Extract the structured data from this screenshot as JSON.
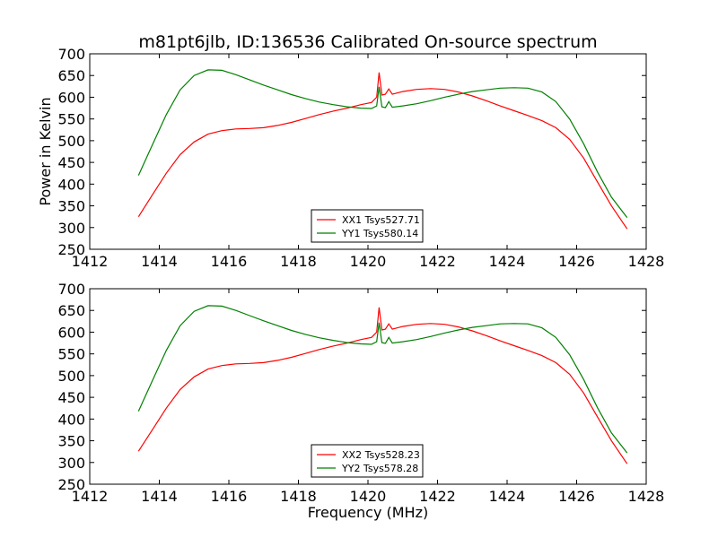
{
  "figure": {
    "title": "m81pt6jlb, ID:136536 Calibrated On-source spectrum",
    "xlabel": "Frequency (MHz)",
    "ylabel": "Power in Kelvin"
  },
  "chart_data": [
    {
      "type": "line",
      "title": "m81pt6jlb, ID:136536 Calibrated On-source spectrum",
      "xlabel": "",
      "ylabel": "Power in Kelvin",
      "xlim": [
        1412,
        1428
      ],
      "ylim": [
        250,
        700
      ],
      "xticks": [
        1412,
        1414,
        1416,
        1418,
        1420,
        1422,
        1424,
        1426,
        1428
      ],
      "yticks": [
        250,
        300,
        350,
        400,
        450,
        500,
        550,
        600,
        650,
        700
      ],
      "grid": false,
      "legend_position": "lower-center",
      "series": [
        {
          "name": "XX1 Tsys527.71",
          "color": "#ff0000",
          "points": [
            [
              1413.4,
              325
            ],
            [
              1413.8,
              375
            ],
            [
              1414.2,
              425
            ],
            [
              1414.6,
              468
            ],
            [
              1415.0,
              497
            ],
            [
              1415.4,
              515
            ],
            [
              1415.8,
              523
            ],
            [
              1416.2,
              527
            ],
            [
              1416.6,
              528
            ],
            [
              1417.0,
              530
            ],
            [
              1417.4,
              535
            ],
            [
              1417.8,
              542
            ],
            [
              1418.2,
              551
            ],
            [
              1418.6,
              560
            ],
            [
              1419.0,
              568
            ],
            [
              1419.4,
              575
            ],
            [
              1419.8,
              583
            ],
            [
              1420.1,
              588
            ],
            [
              1420.25,
              600
            ],
            [
              1420.32,
              657
            ],
            [
              1420.4,
              605
            ],
            [
              1420.5,
              607
            ],
            [
              1420.6,
              619
            ],
            [
              1420.7,
              607
            ],
            [
              1421.0,
              613
            ],
            [
              1421.4,
              618
            ],
            [
              1421.8,
              620
            ],
            [
              1422.2,
              618
            ],
            [
              1422.6,
              612
            ],
            [
              1423.0,
              603
            ],
            [
              1423.4,
              592
            ],
            [
              1423.8,
              580
            ],
            [
              1424.2,
              569
            ],
            [
              1424.6,
              558
            ],
            [
              1425.0,
              546
            ],
            [
              1425.4,
              530
            ],
            [
              1425.8,
              503
            ],
            [
              1426.2,
              460
            ],
            [
              1426.6,
              405
            ],
            [
              1427.0,
              350
            ],
            [
              1427.45,
              297
            ]
          ]
        },
        {
          "name": "YY1 Tsys580.14",
          "color": "#008000",
          "points": [
            [
              1413.4,
              420
            ],
            [
              1413.8,
              490
            ],
            [
              1414.2,
              560
            ],
            [
              1414.6,
              617
            ],
            [
              1415.0,
              650
            ],
            [
              1415.4,
              663
            ],
            [
              1415.8,
              662
            ],
            [
              1416.2,
              652
            ],
            [
              1416.6,
              640
            ],
            [
              1417.0,
              628
            ],
            [
              1417.4,
              617
            ],
            [
              1417.8,
              606
            ],
            [
              1418.2,
              597
            ],
            [
              1418.6,
              589
            ],
            [
              1419.0,
              583
            ],
            [
              1419.4,
              578
            ],
            [
              1419.8,
              575
            ],
            [
              1420.1,
              574
            ],
            [
              1420.25,
              580
            ],
            [
              1420.32,
              624
            ],
            [
              1420.4,
              578
            ],
            [
              1420.5,
              576
            ],
            [
              1420.6,
              590
            ],
            [
              1420.7,
              577
            ],
            [
              1421.0,
              580
            ],
            [
              1421.4,
              585
            ],
            [
              1421.8,
              592
            ],
            [
              1422.2,
              600
            ],
            [
              1422.6,
              607
            ],
            [
              1423.0,
              613
            ],
            [
              1423.4,
              617
            ],
            [
              1423.8,
              621
            ],
            [
              1424.2,
              622
            ],
            [
              1424.6,
              621
            ],
            [
              1425.0,
              612
            ],
            [
              1425.4,
              590
            ],
            [
              1425.8,
              550
            ],
            [
              1426.2,
              493
            ],
            [
              1426.6,
              428
            ],
            [
              1427.0,
              370
            ],
            [
              1427.45,
              323
            ]
          ]
        }
      ]
    },
    {
      "type": "line",
      "title": "",
      "xlabel": "Frequency (MHz)",
      "ylabel": "",
      "xlim": [
        1412,
        1428
      ],
      "ylim": [
        250,
        700
      ],
      "xticks": [
        1412,
        1414,
        1416,
        1418,
        1420,
        1422,
        1424,
        1426,
        1428
      ],
      "yticks": [
        250,
        300,
        350,
        400,
        450,
        500,
        550,
        600,
        650,
        700
      ],
      "grid": false,
      "legend_position": "lower-center",
      "series": [
        {
          "name": "XX2 Tsys528.23",
          "color": "#ff0000",
          "points": [
            [
              1413.4,
              326
            ],
            [
              1413.8,
              375
            ],
            [
              1414.2,
              425
            ],
            [
              1414.6,
              468
            ],
            [
              1415.0,
              497
            ],
            [
              1415.4,
              515
            ],
            [
              1415.8,
              523
            ],
            [
              1416.2,
              527
            ],
            [
              1416.6,
              528
            ],
            [
              1417.0,
              530
            ],
            [
              1417.4,
              535
            ],
            [
              1417.8,
              542
            ],
            [
              1418.2,
              551
            ],
            [
              1418.6,
              560
            ],
            [
              1419.0,
              568
            ],
            [
              1419.4,
              575
            ],
            [
              1419.8,
              583
            ],
            [
              1420.1,
              588
            ],
            [
              1420.25,
              600
            ],
            [
              1420.32,
              657
            ],
            [
              1420.4,
              605
            ],
            [
              1420.5,
              607
            ],
            [
              1420.6,
              619
            ],
            [
              1420.7,
              607
            ],
            [
              1421.0,
              613
            ],
            [
              1421.4,
              618
            ],
            [
              1421.8,
              620
            ],
            [
              1422.2,
              618
            ],
            [
              1422.6,
              612
            ],
            [
              1423.0,
              603
            ],
            [
              1423.4,
              592
            ],
            [
              1423.8,
              580
            ],
            [
              1424.2,
              569
            ],
            [
              1424.6,
              558
            ],
            [
              1425.0,
              546
            ],
            [
              1425.4,
              530
            ],
            [
              1425.8,
              503
            ],
            [
              1426.2,
              460
            ],
            [
              1426.6,
              405
            ],
            [
              1427.0,
              350
            ],
            [
              1427.45,
              297
            ]
          ]
        },
        {
          "name": "YY2 Tsys578.28",
          "color": "#008000",
          "points": [
            [
              1413.4,
              418
            ],
            [
              1413.8,
              488
            ],
            [
              1414.2,
              558
            ],
            [
              1414.6,
              615
            ],
            [
              1415.0,
              648
            ],
            [
              1415.4,
              661
            ],
            [
              1415.8,
              660
            ],
            [
              1416.2,
              650
            ],
            [
              1416.6,
              638
            ],
            [
              1417.0,
              626
            ],
            [
              1417.4,
              615
            ],
            [
              1417.8,
              604
            ],
            [
              1418.2,
              595
            ],
            [
              1418.6,
              587
            ],
            [
              1419.0,
              581
            ],
            [
              1419.4,
              576
            ],
            [
              1419.8,
              573
            ],
            [
              1420.1,
              572
            ],
            [
              1420.25,
              578
            ],
            [
              1420.32,
              622
            ],
            [
              1420.4,
              576
            ],
            [
              1420.5,
              574
            ],
            [
              1420.6,
              588
            ],
            [
              1420.7,
              575
            ],
            [
              1421.0,
              578
            ],
            [
              1421.4,
              583
            ],
            [
              1421.8,
              590
            ],
            [
              1422.2,
              598
            ],
            [
              1422.6,
              605
            ],
            [
              1423.0,
              611
            ],
            [
              1423.4,
              615
            ],
            [
              1423.8,
              619
            ],
            [
              1424.2,
              620
            ],
            [
              1424.6,
              619
            ],
            [
              1425.0,
              610
            ],
            [
              1425.4,
              588
            ],
            [
              1425.8,
              548
            ],
            [
              1426.2,
              491
            ],
            [
              1426.6,
              426
            ],
            [
              1427.0,
              368
            ],
            [
              1427.45,
              322
            ]
          ]
        }
      ]
    }
  ]
}
